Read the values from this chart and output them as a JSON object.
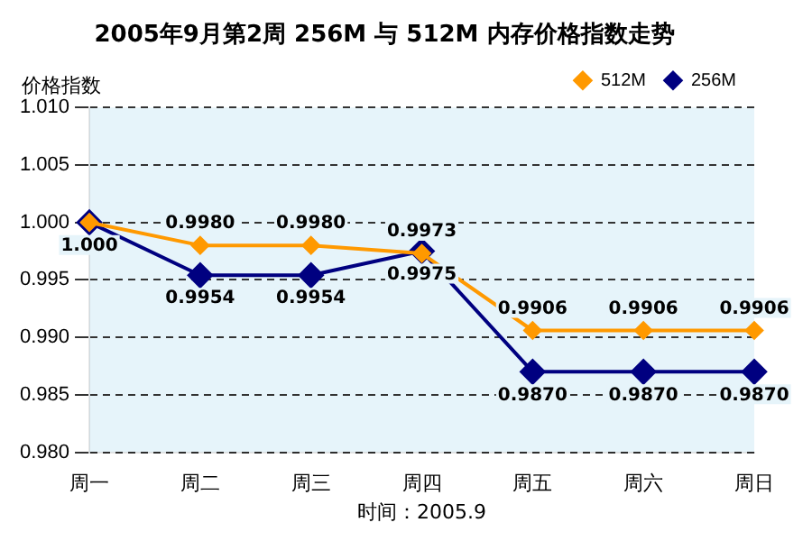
{
  "chart_data": {
    "type": "line",
    "title": "2005年9月第2周 256M 与 512M 内存价格指数走势",
    "ylabel": "价格指数",
    "annotations": [
      "时间：2005.9"
    ],
    "categories": [
      "周一",
      "周二",
      "周三",
      "周四",
      "周五",
      "周六",
      "周日"
    ],
    "series": [
      {
        "name": "256M",
        "color": "#000080",
        "values": [
          1.0,
          0.9954,
          0.9954,
          0.9975,
          0.987,
          0.987,
          0.987
        ],
        "value_labels": [
          "1.000",
          "0.9954",
          "0.9954",
          "0.9975",
          "0.9870",
          "0.9870",
          "0.9870"
        ]
      },
      {
        "name": "512M",
        "color": "#ff9900",
        "values": [
          1.0,
          0.998,
          0.998,
          0.9973,
          0.9906,
          0.9906,
          0.9906
        ],
        "value_labels": [
          null,
          "0.9980",
          "0.9980",
          "0.9973",
          "0.9906",
          "0.9906",
          "0.9906"
        ]
      }
    ],
    "ylim": [
      0.98,
      1.01
    ],
    "yticks": [
      {
        "value": 0.98,
        "label": "0.980"
      },
      {
        "value": 0.985,
        "label": "0.985"
      },
      {
        "value": 0.99,
        "label": "0.990"
      },
      {
        "value": 0.995,
        "label": "0.995"
      },
      {
        "value": 1.0,
        "label": "1.000"
      },
      {
        "value": 1.005,
        "label": "1.005"
      },
      {
        "value": 1.01,
        "label": "1.010"
      }
    ],
    "grid": "y",
    "legend": "top",
    "marker": "diamond",
    "line_style": "solid"
  }
}
